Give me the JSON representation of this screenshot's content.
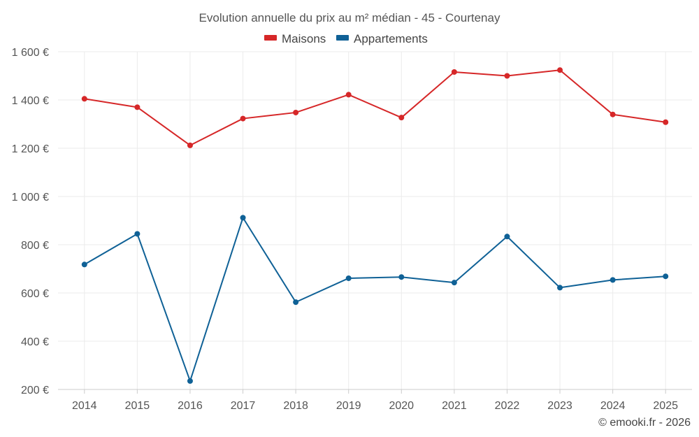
{
  "chart_data": {
    "type": "line",
    "title": "Evolution annuelle du prix au m² médian - 45 - Courtenay",
    "categories": [
      "2014",
      "2015",
      "2016",
      "2017",
      "2018",
      "2019",
      "2020",
      "2021",
      "2022",
      "2023",
      "2024",
      "2025"
    ],
    "series": [
      {
        "name": "Maisons",
        "color": "#d62728",
        "values": [
          1405,
          1370,
          1212,
          1323,
          1348,
          1422,
          1327,
          1516,
          1500,
          1524,
          1340,
          1308
        ]
      },
      {
        "name": "Appartements",
        "color": "#0f6196",
        "values": [
          718,
          845,
          235,
          912,
          562,
          661,
          666,
          643,
          834,
          622,
          654,
          669
        ]
      }
    ],
    "ylim": [
      200,
      1600
    ],
    "yticks": [
      200,
      400,
      600,
      800,
      1000,
      1200,
      1400,
      1600
    ],
    "ytick_labels": [
      "200 €",
      "400 €",
      "600 €",
      "800 €",
      "1 000 €",
      "1 200 €",
      "1 400 €",
      "1 600 €"
    ],
    "xlabel": "",
    "ylabel": "",
    "legend_position": "top-center",
    "grid": true
  },
  "credit": "© emooki.fr - 2026"
}
